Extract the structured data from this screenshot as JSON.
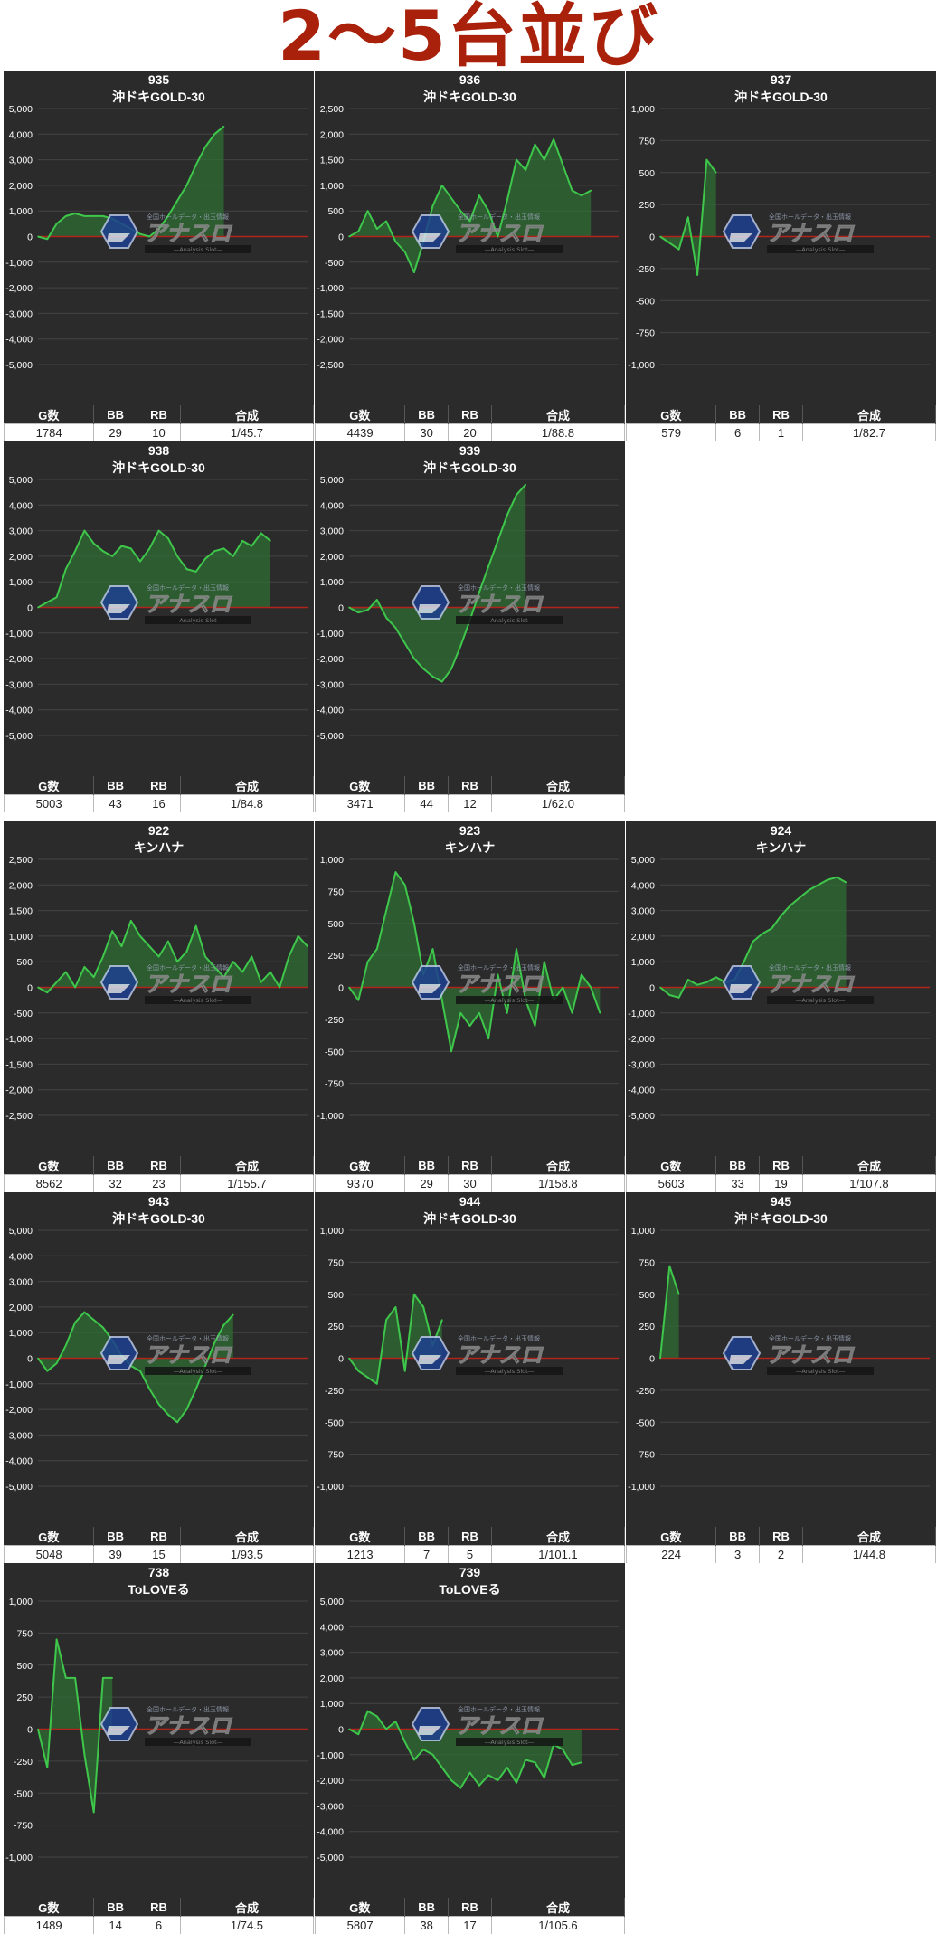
{
  "title": "2～5台並び",
  "colors": {
    "panel_bg": "#2b2b2b",
    "line": "#3ec74b",
    "fill": "#2f6e34",
    "zero": "#b0241c",
    "grid": "#444444",
    "title": "#a9210a"
  },
  "stat_headers": [
    "G数",
    "BB",
    "RB",
    "合成"
  ],
  "watermark": {
    "icon": "hexagon-logo-icon",
    "top_text": "全国ホールデータ・出玉情報",
    "main_text": "アナスロ",
    "sub_text": "―Analysis Slot―"
  },
  "chart_data": [
    {
      "type": "line",
      "machine_no": "935",
      "model": "沖ドキGOLD-30",
      "ylim": [
        -5000,
        5000
      ],
      "yticks": [
        "5,000",
        "4,000",
        "3,000",
        "2,000",
        "1,000",
        "0",
        "-1,000",
        "-2,000",
        "-3,000",
        "-4,000",
        "-5,000"
      ],
      "values": [
        0,
        -100,
        500,
        800,
        900,
        800,
        800,
        800,
        700,
        500,
        300,
        100,
        0,
        300,
        800,
        1400,
        2000,
        2800,
        3500,
        4000,
        4300
      ],
      "stats": {
        "games": "1784",
        "bb": "29",
        "rb": "10",
        "combined": "1/45.7"
      }
    },
    {
      "type": "line",
      "machine_no": "936",
      "model": "沖ドキGOLD-30",
      "ylim": [
        -2500,
        2500
      ],
      "yticks": [
        "2,500",
        "2,000",
        "1,500",
        "1,000",
        "500",
        "0",
        "-500",
        "-1,000",
        "-1,500",
        "-2,000",
        "-2,500"
      ],
      "values": [
        0,
        100,
        500,
        150,
        300,
        -100,
        -300,
        -700,
        -100,
        600,
        1000,
        750,
        500,
        300,
        800,
        500,
        0,
        700,
        1500,
        1300,
        1800,
        1500,
        1900,
        1400,
        900,
        800,
        900
      ],
      "stats": {
        "games": "4439",
        "bb": "30",
        "rb": "20",
        "combined": "1/88.8"
      }
    },
    {
      "type": "line",
      "machine_no": "937",
      "model": "沖ドキGOLD-30",
      "ylim": [
        -1000,
        1000
      ],
      "yticks": [
        "1,000",
        "750",
        "500",
        "250",
        "0",
        "-250",
        "-500",
        "-750",
        "-1,000"
      ],
      "values": [
        0,
        -50,
        -100,
        150,
        -300,
        600,
        500
      ],
      "stats": {
        "games": "579",
        "bb": "6",
        "rb": "1",
        "combined": "1/82.7"
      }
    },
    {
      "type": "line",
      "machine_no": "938",
      "model": "沖ドキGOLD-30",
      "ylim": [
        -5000,
        5000
      ],
      "yticks": [
        "5,000",
        "4,000",
        "3,000",
        "2,000",
        "1,000",
        "0",
        "-1,000",
        "-2,000",
        "-3,000",
        "-4,000",
        "-5,000"
      ],
      "values": [
        0,
        200,
        400,
        1500,
        2200,
        3000,
        2500,
        2200,
        2000,
        2400,
        2300,
        1800,
        2300,
        3000,
        2700,
        2000,
        1500,
        1400,
        1900,
        2200,
        2300,
        2000,
        2600,
        2400,
        2900,
        2600
      ],
      "stats": {
        "games": "5003",
        "bb": "43",
        "rb": "16",
        "combined": "1/84.8"
      }
    },
    {
      "type": "line",
      "machine_no": "939",
      "model": "沖ドキGOLD-30",
      "ylim": [
        -5000,
        5000
      ],
      "yticks": [
        "5,000",
        "4,000",
        "3,000",
        "2,000",
        "1,000",
        "0",
        "-1,000",
        "-2,000",
        "-3,000",
        "-4,000",
        "-5,000"
      ],
      "values": [
        0,
        -200,
        -100,
        300,
        -400,
        -800,
        -1400,
        -2000,
        -2400,
        -2700,
        -2900,
        -2400,
        -1500,
        -500,
        600,
        1600,
        2600,
        3600,
        4400,
        4800
      ],
      "stats": {
        "games": "3471",
        "bb": "44",
        "rb": "12",
        "combined": "1/62.0"
      }
    },
    {
      "type": "line",
      "machine_no": "922",
      "model": "キンハナ",
      "ylim": [
        -2500,
        2500
      ],
      "yticks": [
        "2,500",
        "2,000",
        "1,500",
        "1,000",
        "500",
        "0",
        "-500",
        "-1,000",
        "-1,500",
        "-2,000",
        "-2,500"
      ],
      "values": [
        0,
        -100,
        100,
        300,
        0,
        400,
        200,
        600,
        1100,
        800,
        1300,
        1000,
        800,
        600,
        900,
        500,
        700,
        1200,
        600,
        400,
        200,
        500,
        300,
        600,
        100,
        300,
        0,
        600,
        1000,
        800
      ],
      "stats": {
        "games": "8562",
        "bb": "32",
        "rb": "23",
        "combined": "1/155.7"
      }
    },
    {
      "type": "line",
      "machine_no": "923",
      "model": "キンハナ",
      "ylim": [
        -1000,
        1000
      ],
      "yticks": [
        "1,000",
        "750",
        "500",
        "250",
        "0",
        "-250",
        "-500",
        "-750",
        "-1,000"
      ],
      "values": [
        0,
        -100,
        200,
        300,
        600,
        900,
        800,
        500,
        100,
        300,
        -100,
        -500,
        -200,
        -300,
        -200,
        -400,
        100,
        -200,
        300,
        -100,
        -300,
        200,
        -100,
        0,
        -200,
        100,
        0,
        -200
      ],
      "stats": {
        "games": "9370",
        "bb": "29",
        "rb": "30",
        "combined": "1/158.8"
      }
    },
    {
      "type": "line",
      "machine_no": "924",
      "model": "キンハナ",
      "ylim": [
        -5000,
        5000
      ],
      "yticks": [
        "5,000",
        "4,000",
        "3,000",
        "2,000",
        "1,000",
        "0",
        "-1,000",
        "-2,000",
        "-3,000",
        "-4,000",
        "-5,000"
      ],
      "values": [
        0,
        -300,
        -400,
        300,
        100,
        200,
        400,
        200,
        300,
        1000,
        1800,
        2100,
        2300,
        2800,
        3200,
        3500,
        3800,
        4000,
        4200,
        4300,
        4100
      ],
      "stats": {
        "games": "5603",
        "bb": "33",
        "rb": "19",
        "combined": "1/107.8"
      }
    },
    {
      "type": "line",
      "machine_no": "943",
      "model": "沖ドキGOLD-30",
      "ylim": [
        -5000,
        5000
      ],
      "yticks": [
        "5,000",
        "4,000",
        "3,000",
        "2,000",
        "1,000",
        "0",
        "-1,000",
        "-2,000",
        "-3,000",
        "-4,000",
        "-5,000"
      ],
      "values": [
        0,
        -500,
        -200,
        500,
        1400,
        1800,
        1500,
        1200,
        700,
        100,
        -300,
        -500,
        -1200,
        -1800,
        -2200,
        -2500,
        -2000,
        -1200,
        -300,
        600,
        1300,
        1700
      ],
      "stats": {
        "games": "5048",
        "bb": "39",
        "rb": "15",
        "combined": "1/93.5"
      }
    },
    {
      "type": "line",
      "machine_no": "944",
      "model": "沖ドキGOLD-30",
      "ylim": [
        -1000,
        1000
      ],
      "yticks": [
        "1,000",
        "750",
        "500",
        "250",
        "0",
        "-250",
        "-500",
        "-750",
        "-1,000"
      ],
      "values": [
        0,
        -100,
        -150,
        -200,
        300,
        400,
        -100,
        500,
        400,
        100,
        300
      ],
      "stats": {
        "games": "1213",
        "bb": "7",
        "rb": "5",
        "combined": "1/101.1"
      }
    },
    {
      "type": "line",
      "machine_no": "945",
      "model": "沖ドキGOLD-30",
      "ylim": [
        -1000,
        1000
      ],
      "yticks": [
        "1,000",
        "750",
        "500",
        "250",
        "0",
        "-250",
        "-500",
        "-750",
        "-1,000"
      ],
      "values": [
        0,
        720,
        500
      ],
      "stats": {
        "games": "224",
        "bb": "3",
        "rb": "2",
        "combined": "1/44.8"
      }
    },
    {
      "type": "line",
      "machine_no": "738",
      "model": "ToLOVEる",
      "ylim": [
        -1000,
        1000
      ],
      "yticks": [
        "1,000",
        "750",
        "500",
        "250",
        "0",
        "-250",
        "-500",
        "-750",
        "-1,000"
      ],
      "values": [
        0,
        -300,
        700,
        400,
        400,
        -200,
        -650,
        400,
        400
      ],
      "stats": {
        "games": "1489",
        "bb": "14",
        "rb": "6",
        "combined": "1/74.5"
      }
    },
    {
      "type": "line",
      "machine_no": "739",
      "model": "ToLOVEる",
      "ylim": [
        -5000,
        5000
      ],
      "yticks": [
        "5,000",
        "4,000",
        "3,000",
        "2,000",
        "1,000",
        "0",
        "-1,000",
        "-2,000",
        "-3,000",
        "-4,000",
        "-5,000"
      ],
      "values": [
        0,
        -200,
        700,
        500,
        0,
        300,
        -500,
        -1200,
        -800,
        -1000,
        -1500,
        -2000,
        -2300,
        -1700,
        -2200,
        -1800,
        -2000,
        -1500,
        -2100,
        -1200,
        -1300,
        -1900,
        -600,
        -800,
        -1400,
        -1300
      ],
      "stats": {
        "games": "5807",
        "bb": "38",
        "rb": "17",
        "combined": "1/105.6"
      }
    }
  ]
}
